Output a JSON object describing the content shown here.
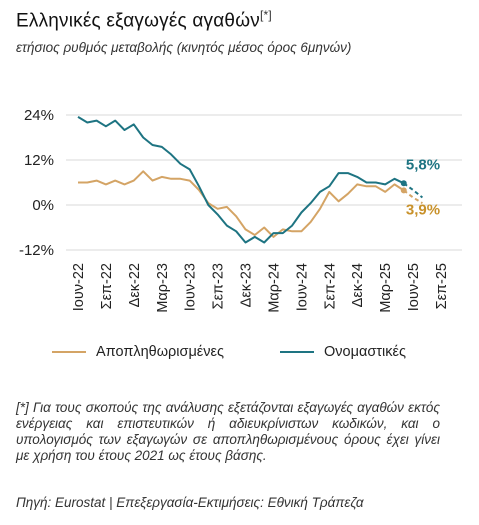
{
  "title": "Ελληνικές εξαγωγές αγαθών",
  "title_note": "[*]",
  "subtitle": "ετήσιος ρυθμός μεταβολής (κινητός μέσος όρος 6μηνών)",
  "footnote": "[*] Για τους σκοπούς της ανάλυσης εξετάζονται εξαγωγές αγαθών εκτός ενέργειας και επιστευτικών ή αδιευκρίνιστων κωδικών, και ο υπολογισμός των εξαγωγών σε αποπληθωρισμένους όρους έχει γίνει με χρήση του έτους 2021 ως έτους βάσης.",
  "source": "Πηγή: Eurostat | Επεξεργασία-Εκτιμήσεις: Εθνική Τράπεζα",
  "colors": {
    "real": "#d4a465",
    "nominal": "#1e7482",
    "real_label": "#c8912a",
    "nominal_label": "#1e7482"
  },
  "chart_data": {
    "type": "line",
    "ylim": [
      -12,
      24
    ],
    "yticks": [
      -12,
      0,
      12,
      24
    ],
    "ytick_labels": [
      "-12%",
      "0%",
      "12%",
      "24%"
    ],
    "x_labels": [
      "Ιουν-22",
      "Σεπ-22",
      "Δεκ-22",
      "Μαρ-23",
      "Ιουν-23",
      "Σεπ-23",
      "Δεκ-23",
      "Μαρ-24",
      "Ιουν-24",
      "Σεπ-24",
      "Δεκ-24",
      "Μαρ-25",
      "Ιουν-25",
      "Σεπ-25"
    ],
    "series": [
      {
        "name": "Αποπληθωρισμένες",
        "values": [
          6,
          6,
          6.5,
          5.5,
          6.5,
          5.5,
          6.5,
          9,
          6.5,
          7.5,
          7,
          7,
          6.5,
          4,
          0.5,
          -1,
          -0.5,
          -3,
          -6.5,
          -8,
          -6,
          -8.5,
          -6.5,
          -7,
          -7,
          -4.5,
          -1,
          3.5,
          1,
          3,
          5.5,
          5,
          5,
          3.5,
          5.5,
          3.9
        ],
        "forecast": [
          3.9,
          2,
          0.5
        ],
        "end_label": "3,9%"
      },
      {
        "name": "Ονομαστικές",
        "values": [
          23.5,
          22,
          22.5,
          21,
          22.5,
          20,
          21.5,
          18,
          16,
          15.5,
          13.5,
          11,
          9.5,
          5,
          0,
          -2.5,
          -5.5,
          -7,
          -10,
          -8.5,
          -10,
          -7.5,
          -7.5,
          -5.5,
          -2,
          0.5,
          3.5,
          5,
          8.5,
          8.5,
          7.5,
          6,
          6,
          5.5,
          7,
          5.8
        ],
        "forecast": [
          5.8,
          4,
          2
        ],
        "end_label": "5,8%"
      }
    ]
  }
}
